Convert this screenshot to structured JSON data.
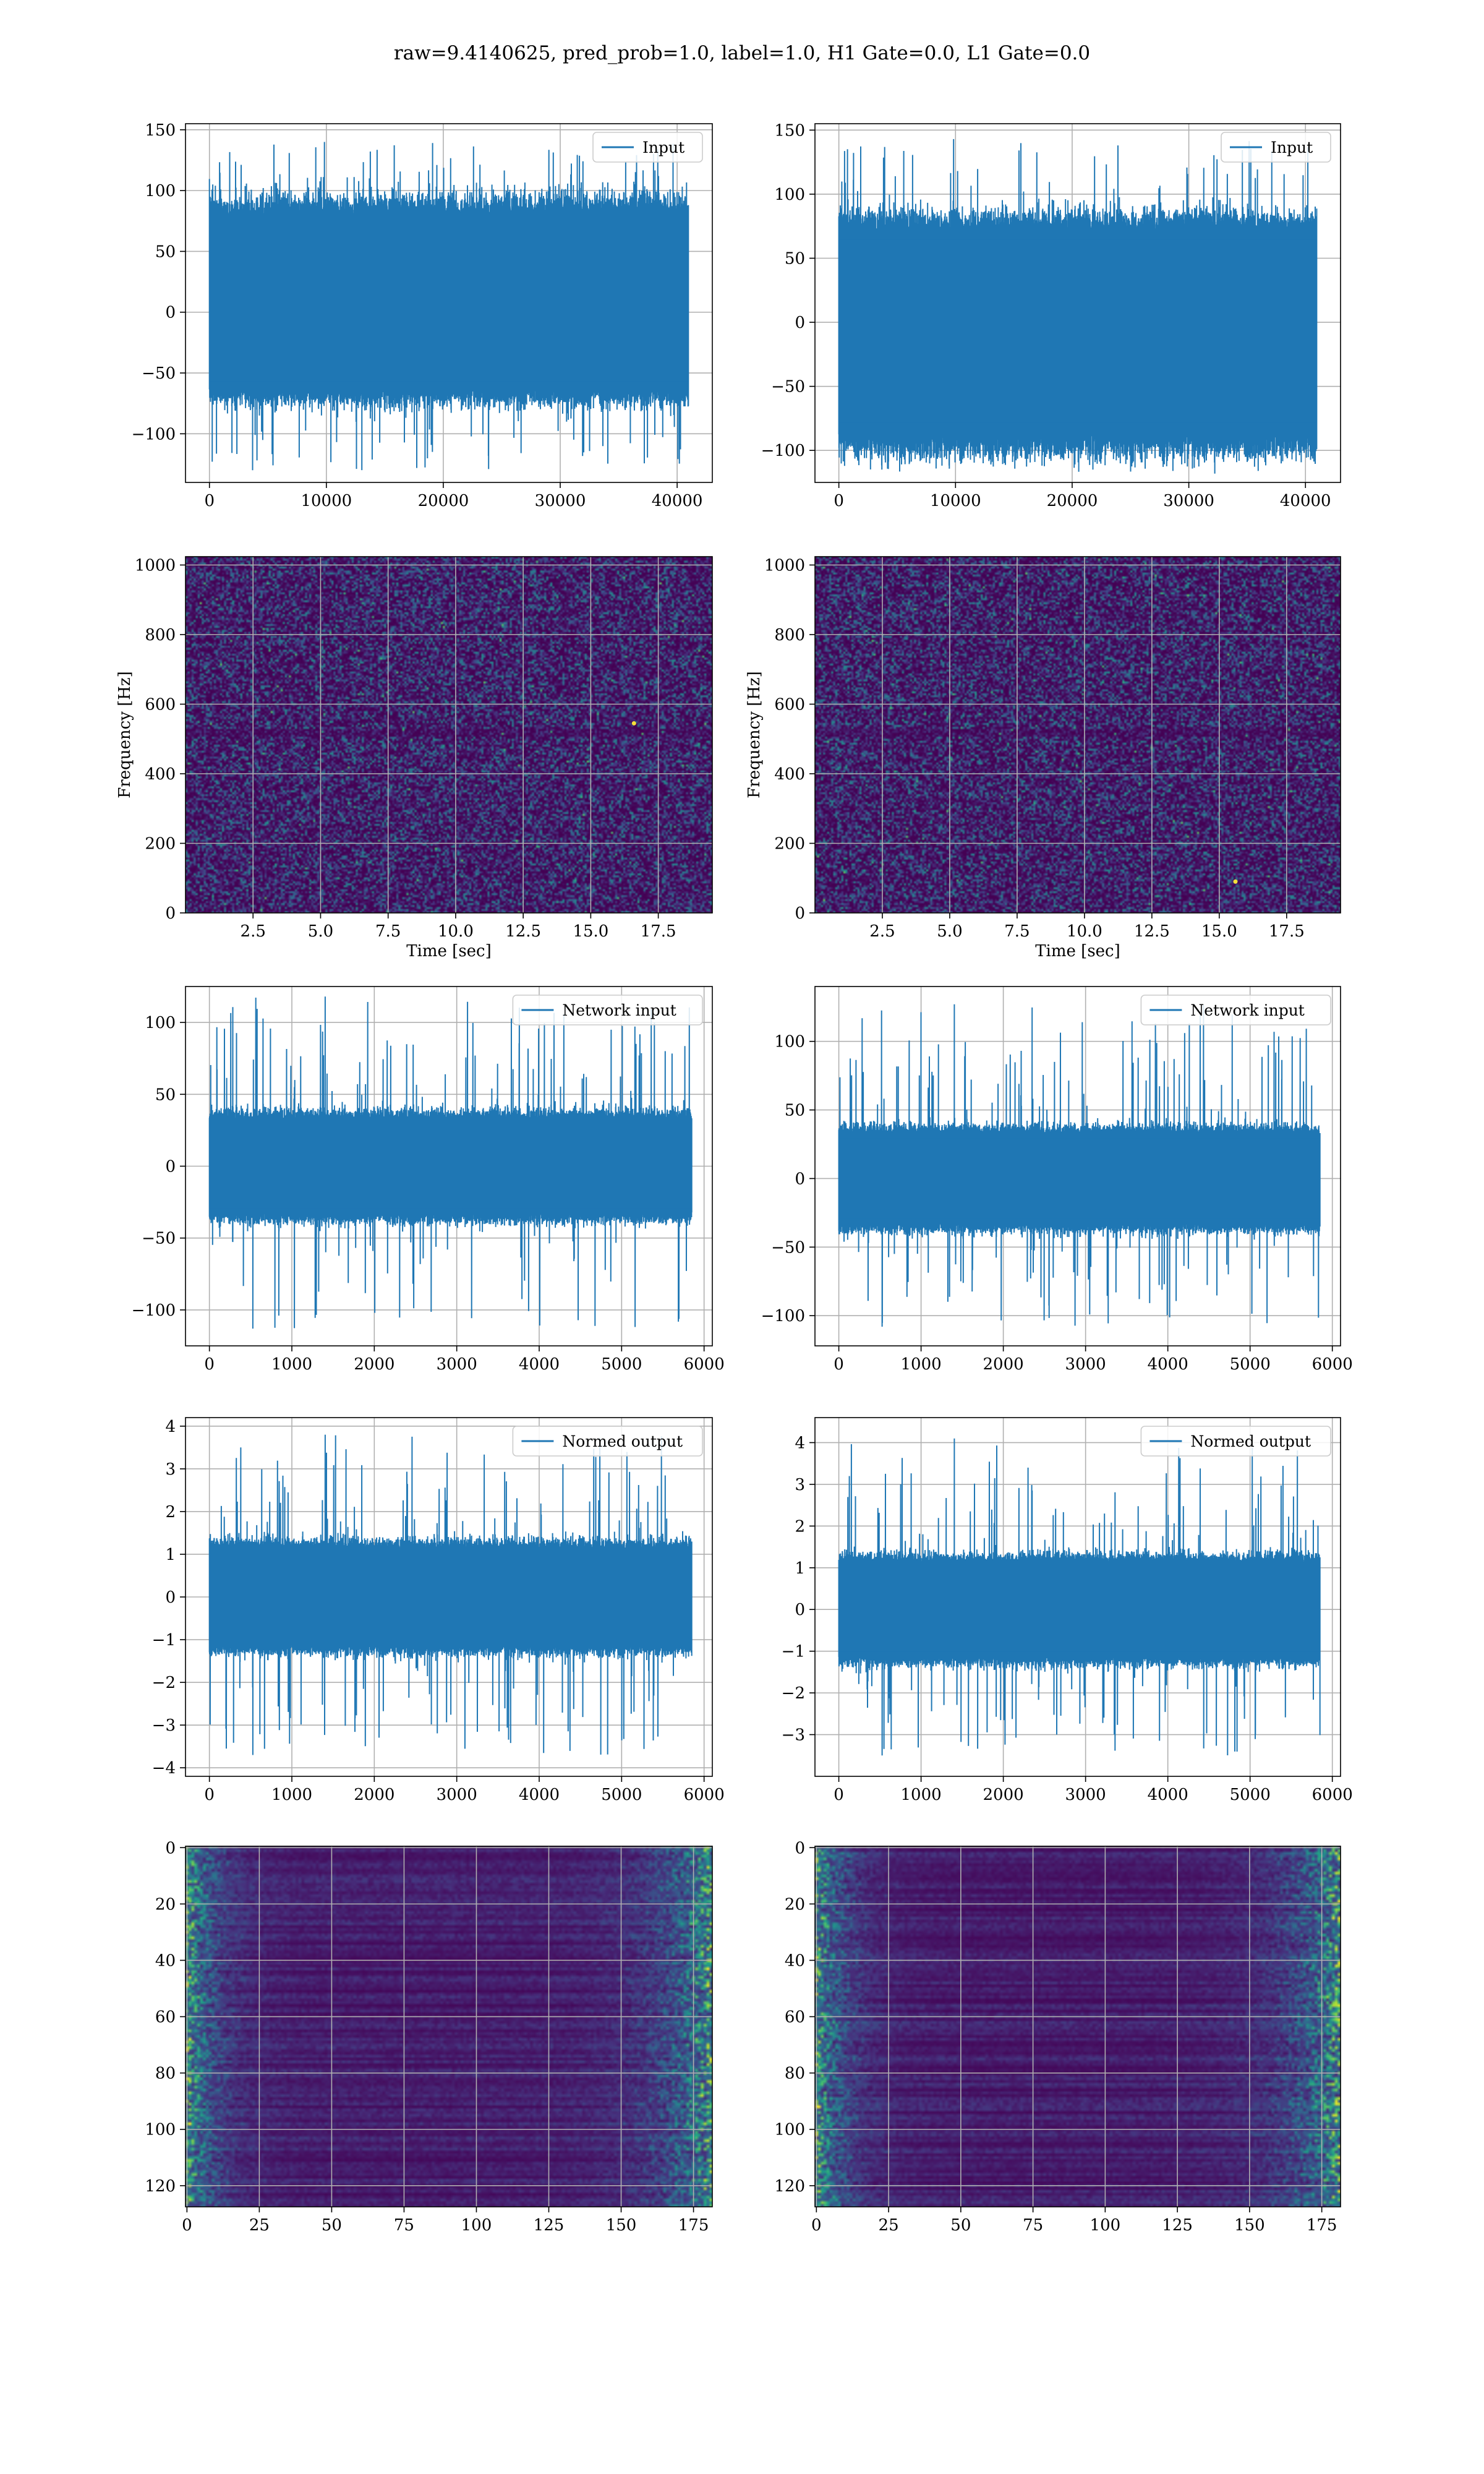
{
  "figure": {
    "title": "raw=9.4140625, pred_prob=1.0, label=1.0, H1 Gate=0.0, L1 Gate=0.0"
  },
  "colors": {
    "line": "#1f77b4",
    "grid": "#b0b0b0",
    "viridis": [
      "#440154",
      "#46327e",
      "#365c8d",
      "#277f8e",
      "#1fa187",
      "#4ac16d",
      "#a0da39",
      "#fde725"
    ]
  },
  "chart_data": [
    {
      "panel": "input-left",
      "type": "line",
      "xlim": [
        -2048,
        43008
      ],
      "ylim": [
        -140,
        155
      ],
      "xticks": [
        0,
        10000,
        20000,
        30000,
        40000
      ],
      "yticks": [
        -100,
        -50,
        0,
        50,
        100,
        150
      ],
      "ytick_labels": [
        "−100",
        "−50",
        "0",
        "50",
        "100",
        "150"
      ],
      "x_range": [
        0,
        40960
      ],
      "band": [
        -62,
        78
      ],
      "spike_max": 140,
      "spike_min": -130,
      "legend": "Input",
      "grid": true,
      "legend_position": "upper right"
    },
    {
      "panel": "input-right",
      "type": "line",
      "xlim": [
        -2048,
        43008
      ],
      "ylim": [
        -125,
        155
      ],
      "xticks": [
        0,
        10000,
        20000,
        30000,
        40000
      ],
      "yticks": [
        -100,
        -50,
        0,
        50,
        100,
        150
      ],
      "ytick_labels": [
        "−100",
        "−50",
        "0",
        "50",
        "100",
        "150"
      ],
      "x_range": [
        0,
        40960
      ],
      "band": [
        -85,
        70
      ],
      "spike_max": 143,
      "spike_min": -115,
      "legend": "Input",
      "grid": true,
      "legend_position": "upper right"
    },
    {
      "panel": "spectrogram-left",
      "type": "heatmap",
      "xlim": [
        0,
        19.5
      ],
      "ylim": [
        0,
        1024
      ],
      "xticks": [
        2.5,
        5.0,
        7.5,
        10.0,
        12.5,
        15.0,
        17.5
      ],
      "yticks": [
        0,
        200,
        400,
        600,
        800,
        1000
      ],
      "xlabel": "Time [sec]",
      "ylabel": "Frequency [Hz]",
      "colormap": "viridis",
      "grid": true,
      "hot_spots": [
        {
          "t": 16.6,
          "f": 545
        }
      ]
    },
    {
      "panel": "spectrogram-right",
      "type": "heatmap",
      "xlim": [
        0,
        19.5
      ],
      "ylim": [
        0,
        1024
      ],
      "xticks": [
        2.5,
        5.0,
        7.5,
        10.0,
        12.5,
        15.0,
        17.5
      ],
      "yticks": [
        0,
        200,
        400,
        600,
        800,
        1000
      ],
      "xlabel": "Time [sec]",
      "ylabel": "Frequency [Hz]",
      "colormap": "viridis",
      "grid": true,
      "hot_spots": [
        {
          "t": 15.6,
          "f": 90
        }
      ]
    },
    {
      "panel": "network-input-left",
      "type": "line",
      "xlim": [
        -290,
        6100
      ],
      "ylim": [
        -125,
        125
      ],
      "xticks": [
        0,
        1000,
        2000,
        3000,
        4000,
        5000,
        6000
      ],
      "yticks": [
        -100,
        -50,
        0,
        50,
        100
      ],
      "ytick_labels": [
        "−100",
        "−50",
        "0",
        "50",
        "100"
      ],
      "x_range": [
        0,
        5850
      ],
      "band": [
        -32,
        32
      ],
      "spike_max": 118,
      "spike_min": -113,
      "legend": "Network input",
      "grid": true,
      "legend_position": "upper right"
    },
    {
      "panel": "network-input-right",
      "type": "line",
      "xlim": [
        -290,
        6100
      ],
      "ylim": [
        -122,
        140
      ],
      "xticks": [
        0,
        1000,
        2000,
        3000,
        4000,
        5000,
        6000
      ],
      "yticks": [
        -100,
        -50,
        0,
        50,
        100
      ],
      "ytick_labels": [
        "−100",
        "−50",
        "0",
        "50",
        "100"
      ],
      "x_range": [
        0,
        5850
      ],
      "band": [
        -32,
        32
      ],
      "spike_max": 127,
      "spike_min": -108,
      "legend": "Network input",
      "grid": true,
      "legend_position": "upper right"
    },
    {
      "panel": "normed-output-left",
      "type": "line",
      "xlim": [
        -290,
        6100
      ],
      "ylim": [
        -4.2,
        4.2
      ],
      "xticks": [
        0,
        1000,
        2000,
        3000,
        4000,
        5000,
        6000
      ],
      "yticks": [
        -4,
        -3,
        -2,
        -1,
        0,
        1,
        2,
        3,
        4
      ],
      "ytick_labels": [
        "−4",
        "−3",
        "−2",
        "−1",
        "0",
        "1",
        "2",
        "3",
        "4"
      ],
      "x_range": [
        0,
        5850
      ],
      "band": [
        -1.1,
        1.1
      ],
      "spike_max": 3.8,
      "spike_min": -3.7,
      "legend": "Normed output",
      "grid": true,
      "legend_position": "upper right"
    },
    {
      "panel": "normed-output-right",
      "type": "line",
      "xlim": [
        -290,
        6100
      ],
      "ylim": [
        -4.0,
        4.6
      ],
      "xticks": [
        0,
        1000,
        2000,
        3000,
        4000,
        5000,
        6000
      ],
      "yticks": [
        -3,
        -2,
        -1,
        0,
        1,
        2,
        3,
        4
      ],
      "ytick_labels": [
        "−3",
        "−2",
        "−1",
        "0",
        "1",
        "2",
        "3",
        "4"
      ],
      "x_range": [
        0,
        5850
      ],
      "band": [
        -1.1,
        1.1
      ],
      "spike_max": 4.1,
      "spike_min": -3.5,
      "legend": "Normed output",
      "grid": true,
      "legend_position": "upper right"
    },
    {
      "panel": "feature-map-left",
      "type": "heatmap",
      "xlim": [
        -0.5,
        181.5
      ],
      "ylim": [
        127.5,
        -0.5
      ],
      "xticks": [
        0,
        25,
        50,
        75,
        100,
        125,
        150,
        175
      ],
      "yticks": [
        0,
        20,
        40,
        60,
        80,
        100,
        120
      ],
      "rows": 128,
      "cols": 182,
      "colormap": "viridis",
      "grid": true
    },
    {
      "panel": "feature-map-right",
      "type": "heatmap",
      "xlim": [
        -0.5,
        181.5
      ],
      "ylim": [
        127.5,
        -0.5
      ],
      "xticks": [
        0,
        25,
        50,
        75,
        100,
        125,
        150,
        175
      ],
      "yticks": [
        0,
        20,
        40,
        60,
        80,
        100,
        120
      ],
      "rows": 128,
      "cols": 182,
      "colormap": "viridis",
      "grid": true
    }
  ]
}
